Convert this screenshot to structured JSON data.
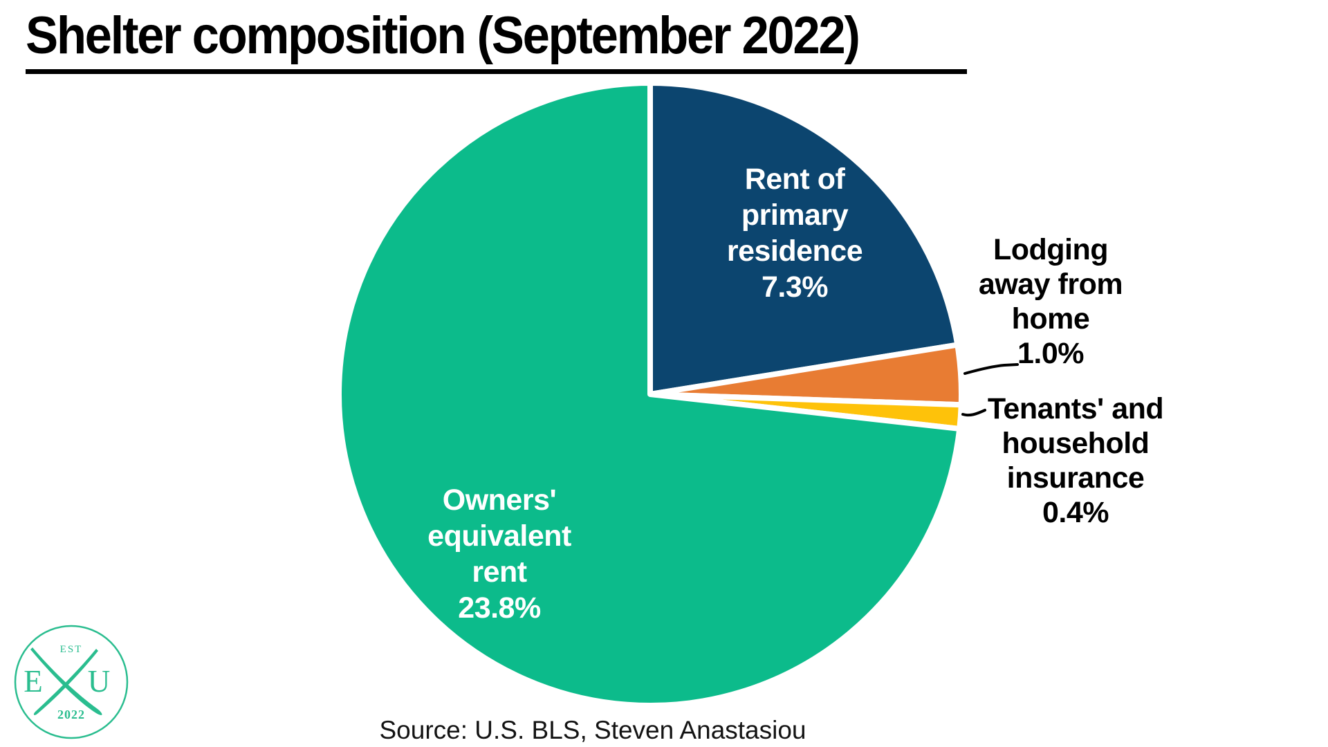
{
  "page": {
    "title": "Shelter composition (September 2022)",
    "source": "Source: U.S. BLS, Steven Anastasiou"
  },
  "chart_data": {
    "type": "pie",
    "title": "Shelter composition (September 2022)",
    "source": "Source: U.S. BLS, Steven Anastasiou",
    "start_angle_deg": 0,
    "direction": "clockwise",
    "slices": [
      {
        "label": "Rent of primary residence",
        "value": 7.3,
        "unit": "%",
        "color": "#0c456f",
        "label_placement": "inside",
        "label_text_color": "#ffffff",
        "display": "Rent of\nprimary\nresidence\n7.3%"
      },
      {
        "label": "Lodging away from home",
        "value": 1.0,
        "unit": "%",
        "color": "#e87c33",
        "label_placement": "outside-with-leader-line",
        "label_text_color": "#000000",
        "display": "Lodging\naway from\nhome\n1.0%"
      },
      {
        "label": "Tenants' and household insurance",
        "value": 0.4,
        "unit": "%",
        "color": "#fec20a",
        "label_placement": "outside-with-leader-line",
        "label_text_color": "#000000",
        "display": "Tenants' and\nhousehold\ninsurance\n0.4%"
      },
      {
        "label": "Owners' equivalent rent",
        "value": 23.8,
        "unit": "%",
        "color": "#0cbb8b",
        "label_placement": "inside",
        "label_text_color": "#ffffff",
        "display": "Owners'\nequivalent\nrent\n23.8%"
      }
    ]
  },
  "logo": {
    "est_label": "EST",
    "left_letter": "E",
    "right_letter": "U",
    "year": "2022",
    "color": "#2abd8f"
  }
}
